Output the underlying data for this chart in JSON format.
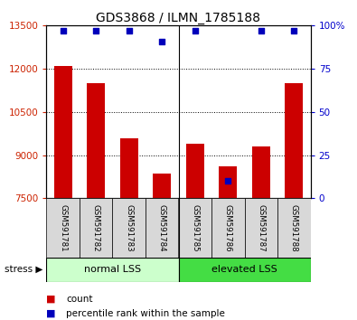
{
  "title": "GDS3868 / ILMN_1785188",
  "samples": [
    "GSM591781",
    "GSM591782",
    "GSM591783",
    "GSM591784",
    "GSM591785",
    "GSM591786",
    "GSM591787",
    "GSM591788"
  ],
  "counts": [
    12100,
    11500,
    9600,
    8350,
    9400,
    8600,
    9300,
    11500
  ],
  "percentile_ranks": [
    97,
    97,
    97,
    91,
    97,
    10,
    97,
    97
  ],
  "bar_color": "#cc0000",
  "dot_color": "#0000bb",
  "ylim_left": [
    7500,
    13500
  ],
  "yticks_left": [
    7500,
    9000,
    10500,
    12000,
    13500
  ],
  "ylim_right": [
    0,
    100
  ],
  "yticks_right": [
    0,
    25,
    50,
    75,
    100
  ],
  "group1_label": "normal LSS",
  "group2_label": "elevated LSS",
  "group1_color": "#ccffcc",
  "group2_color": "#44dd44",
  "group1_indices": [
    0,
    1,
    2,
    3
  ],
  "group2_indices": [
    4,
    5,
    6,
    7
  ],
  "stress_label": "stress",
  "legend_count_label": "count",
  "legend_pct_label": "percentile rank within the sample",
  "title_fontsize": 10,
  "axis_label_color_left": "#cc2200",
  "axis_label_color_right": "#0000cc",
  "background_color": "#ffffff"
}
